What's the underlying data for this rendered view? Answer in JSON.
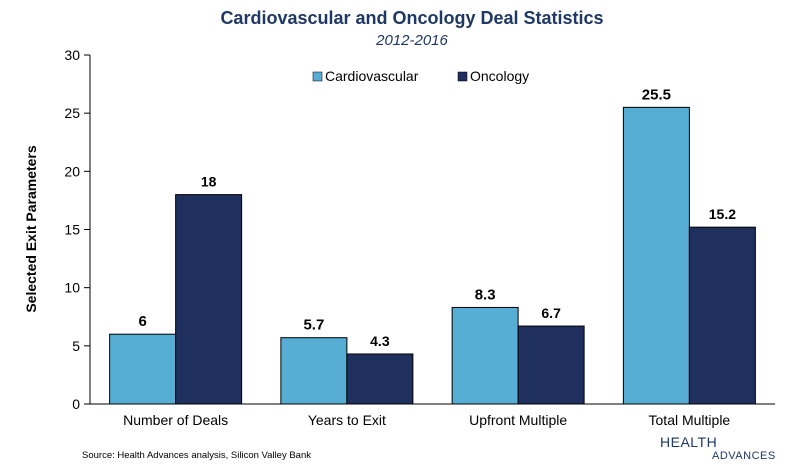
{
  "chart_data": {
    "type": "bar",
    "title": "Cardiovascular and Oncology Deal Statistics",
    "subtitle": "2012-2016",
    "xlabel": "",
    "ylabel": "Selected Exit Parameters",
    "ylim": [
      0,
      30
    ],
    "yticks": [
      0,
      5,
      10,
      15,
      20,
      25,
      30
    ],
    "grid": false,
    "legend_position": "top",
    "categories": [
      "Number of Deals",
      "Years to Exit",
      "Upfront Multiple",
      "Total Multiple"
    ],
    "series": [
      {
        "name": "Cardiovascular",
        "color": "#56aed4",
        "values": [
          6,
          5.7,
          8.3,
          25.5
        ],
        "labels": [
          "6",
          "5.7",
          "8.3",
          "25.5"
        ]
      },
      {
        "name": "Oncology",
        "color": "#1f2f5e",
        "values": [
          18,
          4.3,
          6.7,
          15.2
        ],
        "labels": [
          "18",
          "4.3",
          "6.7",
          "15.2"
        ]
      }
    ]
  },
  "source": "Source: Health Advances analysis, Silicon Valley Bank",
  "logo": {
    "line1": "HEALTH",
    "line2": "ADVANCES"
  }
}
